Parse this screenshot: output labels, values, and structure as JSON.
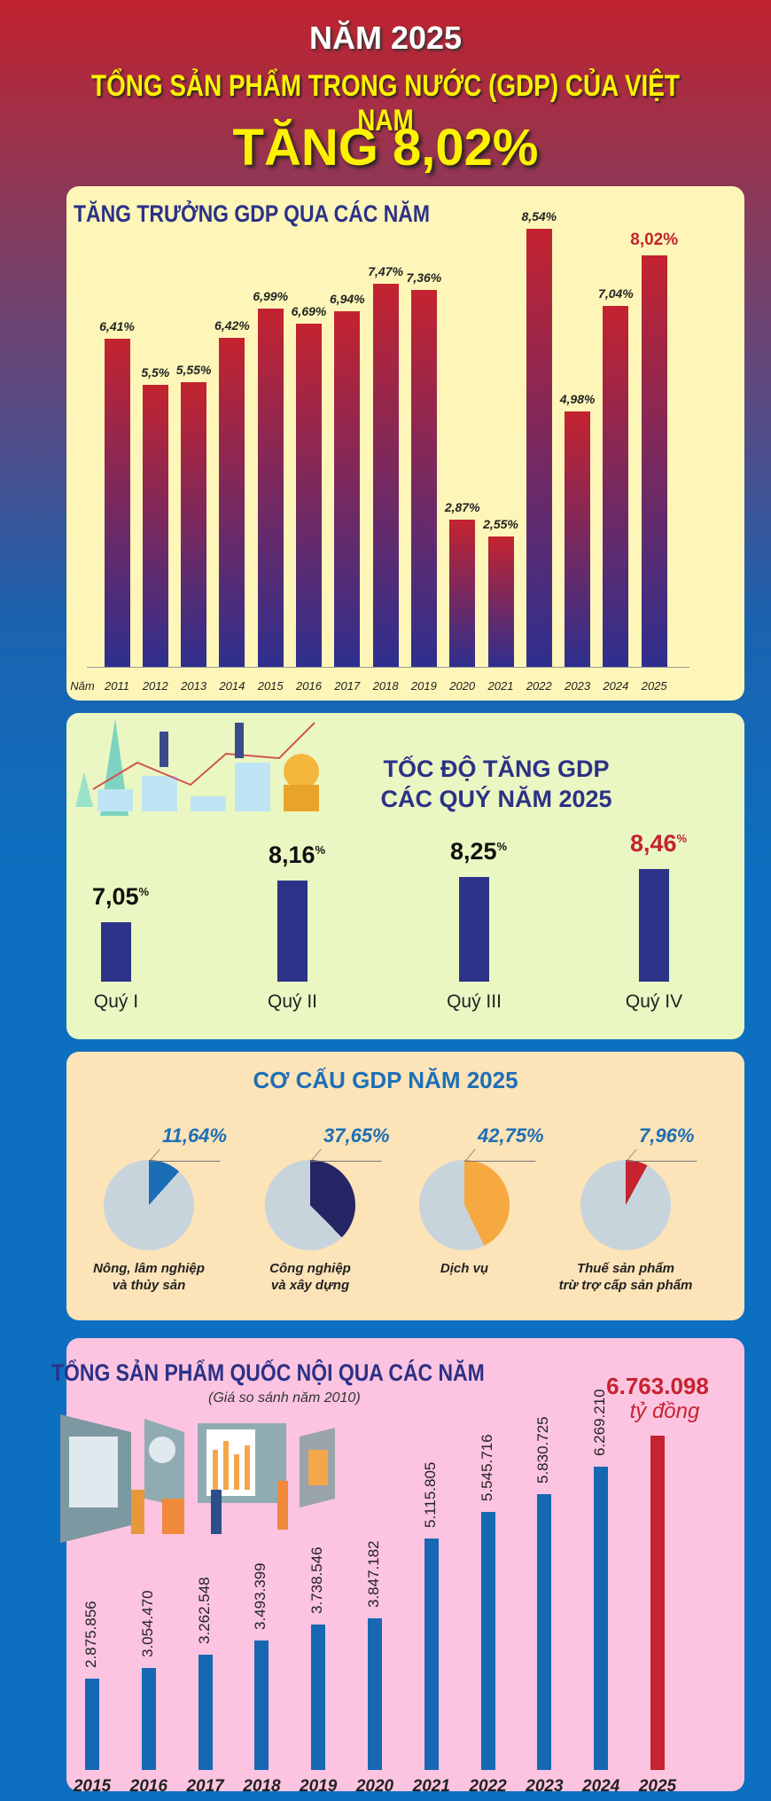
{
  "header": {
    "line1": "NĂM 2025",
    "line2": "TỔNG SẢN PHẨM TRONG NƯỚC (GDP) CỦA VIỆT NAM",
    "line3": "TĂNG 8,02%"
  },
  "chart_data": [
    {
      "type": "bar",
      "title": "TĂNG TRƯỞNG GDP QUA CÁC NĂM",
      "xlabel": "Năm",
      "categories": [
        "2011",
        "2012",
        "2013",
        "2014",
        "2015",
        "2016",
        "2017",
        "2018",
        "2019",
        "2020",
        "2021",
        "2022",
        "2023",
        "2024",
        "2025"
      ],
      "values": [
        6.41,
        5.5,
        5.55,
        6.42,
        6.99,
        6.69,
        6.94,
        7.47,
        7.36,
        2.87,
        2.55,
        8.54,
        4.98,
        7.04,
        8.02
      ],
      "labels": [
        "6,41%",
        "5,5%",
        "5,55%",
        "6,42%",
        "6,99%",
        "6,69%",
        "6,94%",
        "7,47%",
        "7,36%",
        "2,87%",
        "2,55%",
        "8,54%",
        "4,98%",
        "7,04%",
        "8,02%"
      ],
      "highlight_color": "#c4232f"
    },
    {
      "type": "bar",
      "title": "TỐC ĐỘ TĂNG GDP CÁC QUÝ NĂM 2025",
      "categories": [
        "Quý I",
        "Quý II",
        "Quý III",
        "Quý IV"
      ],
      "values": [
        7.05,
        8.16,
        8.25,
        8.46
      ],
      "labels": [
        "7,05",
        "8,16",
        "8,25",
        "8,46"
      ],
      "unit": "%"
    },
    {
      "type": "pie",
      "title": "CƠ CẤU GDP NĂM 2025",
      "categories": [
        "Nông, lâm nghiệp và thủy sản",
        "Công nghiệp và xây dựng",
        "Dịch vụ",
        "Thuế sản phẩm trừ trợ cấp sản phẩm"
      ],
      "label_lines": [
        [
          "Nông, lâm nghiệp",
          "và thủy sản"
        ],
        [
          "Công nghiệp",
          "và xây dựng"
        ],
        [
          "Dịch vụ"
        ],
        [
          "Thuế sản phẩm",
          "trừ trợ cấp sản phẩm"
        ]
      ],
      "values": [
        11.64,
        37.65,
        42.75,
        7.96
      ],
      "labels": [
        "11,64%",
        "37,65%",
        "42,75%",
        "7,96%"
      ],
      "colors": [
        "#1b6db6",
        "#262566",
        "#f7a941",
        "#c4232f"
      ]
    },
    {
      "type": "bar",
      "title": "TỔNG SẢN PHẨM QUỐC NỘI QUA CÁC NĂM",
      "subtitle": "(Giá so sánh năm 2010)",
      "unit": "tỷ đồng",
      "categories": [
        "2015",
        "2016",
        "2017",
        "2018",
        "2019",
        "2020",
        "2021",
        "2022",
        "2023",
        "2024",
        "2025"
      ],
      "values": [
        2875856,
        3054470,
        3262548,
        3493399,
        3738546,
        3847182,
        5115805,
        5545716,
        5830725,
        6269210,
        6763098
      ],
      "labels": [
        "2.875.856",
        "3.054.470",
        "3.262.548",
        "3.493.399",
        "3.738.546",
        "3.847.182",
        "5.115.805",
        "5.545.716",
        "5.830.725",
        "6.269.210",
        "6.763.098"
      ]
    }
  ]
}
